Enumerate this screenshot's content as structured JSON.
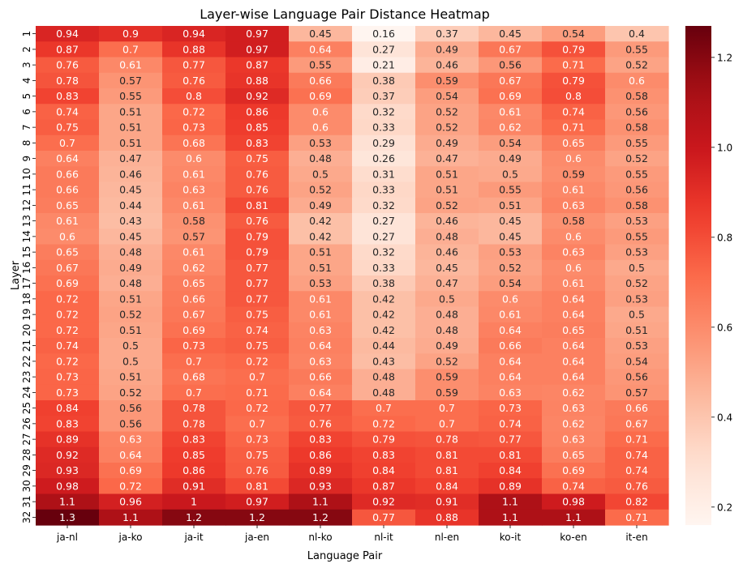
{
  "chart_data": {
    "type": "heatmap",
    "title": "Layer-wise Language Pair Distance Heatmap",
    "xlabel": "Language Pair",
    "ylabel": "Layer",
    "x_categories": [
      "ja-nl",
      "ja-ko",
      "ja-it",
      "ja-en",
      "nl-ko",
      "nl-it",
      "nl-en",
      "ko-it",
      "ko-en",
      "it-en"
    ],
    "y_categories": [
      "1",
      "2",
      "3",
      "4",
      "5",
      "6",
      "7",
      "8",
      "9",
      "10",
      "11",
      "12",
      "13",
      "14",
      "15",
      "16",
      "17",
      "18",
      "19",
      "20",
      "21",
      "22",
      "23",
      "24",
      "25",
      "26",
      "27",
      "28",
      "29",
      "30",
      "31",
      "32"
    ],
    "annotations": [
      [
        "0.94",
        "0.9",
        "0.94",
        "0.97",
        "0.45",
        "0.16",
        "0.37",
        "0.45",
        "0.54",
        "0.4"
      ],
      [
        "0.87",
        "0.7",
        "0.88",
        "0.97",
        "0.64",
        "0.27",
        "0.49",
        "0.67",
        "0.79",
        "0.55"
      ],
      [
        "0.76",
        "0.61",
        "0.77",
        "0.87",
        "0.55",
        "0.21",
        "0.46",
        "0.56",
        "0.71",
        "0.52"
      ],
      [
        "0.78",
        "0.57",
        "0.76",
        "0.88",
        "0.66",
        "0.38",
        "0.59",
        "0.67",
        "0.79",
        "0.6"
      ],
      [
        "0.83",
        "0.55",
        "0.8",
        "0.92",
        "0.69",
        "0.37",
        "0.54",
        "0.69",
        "0.8",
        "0.58"
      ],
      [
        "0.74",
        "0.51",
        "0.72",
        "0.86",
        "0.6",
        "0.32",
        "0.52",
        "0.61",
        "0.74",
        "0.56"
      ],
      [
        "0.75",
        "0.51",
        "0.73",
        "0.85",
        "0.6",
        "0.33",
        "0.52",
        "0.62",
        "0.71",
        "0.58"
      ],
      [
        "0.7",
        "0.51",
        "0.68",
        "0.83",
        "0.53",
        "0.29",
        "0.49",
        "0.54",
        "0.65",
        "0.55"
      ],
      [
        "0.64",
        "0.47",
        "0.6",
        "0.75",
        "0.48",
        "0.26",
        "0.47",
        "0.49",
        "0.6",
        "0.52"
      ],
      [
        "0.66",
        "0.46",
        "0.61",
        "0.76",
        "0.5",
        "0.31",
        "0.51",
        "0.5",
        "0.59",
        "0.55"
      ],
      [
        "0.66",
        "0.45",
        "0.63",
        "0.76",
        "0.52",
        "0.33",
        "0.51",
        "0.55",
        "0.61",
        "0.56"
      ],
      [
        "0.65",
        "0.44",
        "0.61",
        "0.81",
        "0.49",
        "0.32",
        "0.52",
        "0.51",
        "0.63",
        "0.58"
      ],
      [
        "0.61",
        "0.43",
        "0.58",
        "0.76",
        "0.42",
        "0.27",
        "0.46",
        "0.45",
        "0.58",
        "0.53"
      ],
      [
        "0.6",
        "0.45",
        "0.57",
        "0.79",
        "0.42",
        "0.27",
        "0.48",
        "0.45",
        "0.6",
        "0.55"
      ],
      [
        "0.65",
        "0.48",
        "0.61",
        "0.79",
        "0.51",
        "0.32",
        "0.46",
        "0.53",
        "0.63",
        "0.53"
      ],
      [
        "0.67",
        "0.49",
        "0.62",
        "0.77",
        "0.51",
        "0.33",
        "0.45",
        "0.52",
        "0.6",
        "0.5"
      ],
      [
        "0.69",
        "0.48",
        "0.65",
        "0.77",
        "0.53",
        "0.38",
        "0.47",
        "0.54",
        "0.61",
        "0.52"
      ],
      [
        "0.72",
        "0.51",
        "0.66",
        "0.77",
        "0.61",
        "0.42",
        "0.5",
        "0.6",
        "0.64",
        "0.53"
      ],
      [
        "0.72",
        "0.52",
        "0.67",
        "0.75",
        "0.61",
        "0.42",
        "0.48",
        "0.61",
        "0.64",
        "0.5"
      ],
      [
        "0.72",
        "0.51",
        "0.69",
        "0.74",
        "0.63",
        "0.42",
        "0.48",
        "0.64",
        "0.65",
        "0.51"
      ],
      [
        "0.74",
        "0.5",
        "0.73",
        "0.75",
        "0.64",
        "0.44",
        "0.49",
        "0.66",
        "0.64",
        "0.53"
      ],
      [
        "0.72",
        "0.5",
        "0.7",
        "0.72",
        "0.63",
        "0.43",
        "0.52",
        "0.64",
        "0.64",
        "0.54"
      ],
      [
        "0.73",
        "0.51",
        "0.68",
        "0.7",
        "0.66",
        "0.48",
        "0.59",
        "0.64",
        "0.64",
        "0.56"
      ],
      [
        "0.73",
        "0.52",
        "0.7",
        "0.71",
        "0.64",
        "0.48",
        "0.59",
        "0.63",
        "0.62",
        "0.57"
      ],
      [
        "0.84",
        "0.56",
        "0.78",
        "0.72",
        "0.77",
        "0.7",
        "0.7",
        "0.73",
        "0.63",
        "0.66"
      ],
      [
        "0.83",
        "0.56",
        "0.78",
        "0.7",
        "0.76",
        "0.72",
        "0.7",
        "0.74",
        "0.62",
        "0.67"
      ],
      [
        "0.89",
        "0.63",
        "0.83",
        "0.73",
        "0.83",
        "0.79",
        "0.78",
        "0.77",
        "0.63",
        "0.71"
      ],
      [
        "0.92",
        "0.64",
        "0.85",
        "0.75",
        "0.86",
        "0.83",
        "0.81",
        "0.81",
        "0.65",
        "0.74"
      ],
      [
        "0.93",
        "0.69",
        "0.86",
        "0.76",
        "0.89",
        "0.84",
        "0.81",
        "0.84",
        "0.69",
        "0.74"
      ],
      [
        "0.98",
        "0.72",
        "0.91",
        "0.81",
        "0.93",
        "0.87",
        "0.84",
        "0.89",
        "0.74",
        "0.76"
      ],
      [
        "1.1",
        "0.96",
        "1",
        "0.97",
        "1.1",
        "0.92",
        "0.91",
        "1.1",
        "0.98",
        "0.82"
      ],
      [
        "1.3",
        "1.1",
        "1.2",
        "1.2",
        "1.2",
        "0.77",
        "0.88",
        "1.1",
        "1.1",
        "0.71"
      ]
    ],
    "values": [
      [
        0.94,
        0.9,
        0.94,
        0.97,
        0.45,
        0.16,
        0.37,
        0.45,
        0.54,
        0.4
      ],
      [
        0.87,
        0.7,
        0.88,
        0.97,
        0.64,
        0.27,
        0.49,
        0.67,
        0.79,
        0.55
      ],
      [
        0.76,
        0.61,
        0.77,
        0.87,
        0.55,
        0.21,
        0.46,
        0.56,
        0.71,
        0.52
      ],
      [
        0.78,
        0.57,
        0.76,
        0.88,
        0.66,
        0.38,
        0.59,
        0.67,
        0.79,
        0.6
      ],
      [
        0.83,
        0.55,
        0.8,
        0.92,
        0.69,
        0.37,
        0.54,
        0.69,
        0.8,
        0.58
      ],
      [
        0.74,
        0.51,
        0.72,
        0.86,
        0.6,
        0.32,
        0.52,
        0.61,
        0.74,
        0.56
      ],
      [
        0.75,
        0.51,
        0.73,
        0.85,
        0.6,
        0.33,
        0.52,
        0.62,
        0.71,
        0.58
      ],
      [
        0.7,
        0.51,
        0.68,
        0.83,
        0.53,
        0.29,
        0.49,
        0.54,
        0.65,
        0.55
      ],
      [
        0.64,
        0.47,
        0.6,
        0.75,
        0.48,
        0.26,
        0.47,
        0.49,
        0.6,
        0.52
      ],
      [
        0.66,
        0.46,
        0.61,
        0.76,
        0.5,
        0.31,
        0.51,
        0.5,
        0.59,
        0.55
      ],
      [
        0.66,
        0.45,
        0.63,
        0.76,
        0.52,
        0.33,
        0.51,
        0.55,
        0.61,
        0.56
      ],
      [
        0.65,
        0.44,
        0.61,
        0.81,
        0.49,
        0.32,
        0.52,
        0.51,
        0.63,
        0.58
      ],
      [
        0.61,
        0.43,
        0.58,
        0.76,
        0.42,
        0.27,
        0.46,
        0.45,
        0.58,
        0.53
      ],
      [
        0.6,
        0.45,
        0.57,
        0.79,
        0.42,
        0.27,
        0.48,
        0.45,
        0.6,
        0.55
      ],
      [
        0.65,
        0.48,
        0.61,
        0.79,
        0.51,
        0.32,
        0.46,
        0.53,
        0.63,
        0.53
      ],
      [
        0.67,
        0.49,
        0.62,
        0.77,
        0.51,
        0.33,
        0.45,
        0.52,
        0.6,
        0.5
      ],
      [
        0.69,
        0.48,
        0.65,
        0.77,
        0.53,
        0.38,
        0.47,
        0.54,
        0.61,
        0.52
      ],
      [
        0.72,
        0.51,
        0.66,
        0.77,
        0.61,
        0.42,
        0.5,
        0.6,
        0.64,
        0.53
      ],
      [
        0.72,
        0.52,
        0.67,
        0.75,
        0.61,
        0.42,
        0.48,
        0.61,
        0.64,
        0.5
      ],
      [
        0.72,
        0.51,
        0.69,
        0.74,
        0.63,
        0.42,
        0.48,
        0.64,
        0.65,
        0.51
      ],
      [
        0.74,
        0.5,
        0.73,
        0.75,
        0.64,
        0.44,
        0.49,
        0.66,
        0.64,
        0.53
      ],
      [
        0.72,
        0.5,
        0.7,
        0.72,
        0.63,
        0.43,
        0.52,
        0.64,
        0.64,
        0.54
      ],
      [
        0.73,
        0.51,
        0.68,
        0.7,
        0.66,
        0.48,
        0.59,
        0.64,
        0.64,
        0.56
      ],
      [
        0.73,
        0.52,
        0.7,
        0.71,
        0.64,
        0.48,
        0.59,
        0.63,
        0.62,
        0.57
      ],
      [
        0.84,
        0.56,
        0.78,
        0.72,
        0.77,
        0.7,
        0.7,
        0.73,
        0.63,
        0.66
      ],
      [
        0.83,
        0.56,
        0.78,
        0.7,
        0.76,
        0.72,
        0.7,
        0.74,
        0.62,
        0.67
      ],
      [
        0.89,
        0.63,
        0.83,
        0.73,
        0.83,
        0.79,
        0.78,
        0.77,
        0.63,
        0.71
      ],
      [
        0.92,
        0.64,
        0.85,
        0.75,
        0.86,
        0.83,
        0.81,
        0.81,
        0.65,
        0.74
      ],
      [
        0.93,
        0.69,
        0.86,
        0.76,
        0.89,
        0.84,
        0.81,
        0.84,
        0.69,
        0.74
      ],
      [
        0.98,
        0.72,
        0.91,
        0.81,
        0.93,
        0.87,
        0.84,
        0.89,
        0.74,
        0.76
      ],
      [
        1.1,
        0.96,
        1.0,
        0.97,
        1.1,
        0.92,
        0.91,
        1.1,
        0.98,
        0.82
      ],
      [
        1.27,
        1.1,
        1.2,
        1.2,
        1.2,
        0.77,
        0.88,
        1.1,
        1.1,
        0.71
      ]
    ],
    "colormap": "Reds",
    "vmin": 0.16,
    "vmax": 1.27,
    "colorbar": {
      "ticks": [
        0.2,
        0.4,
        0.6,
        0.8,
        1.0,
        1.2
      ],
      "tick_labels": [
        "0.2",
        "0.4",
        "0.6",
        "0.8",
        "1.0",
        "1.2"
      ]
    }
  }
}
